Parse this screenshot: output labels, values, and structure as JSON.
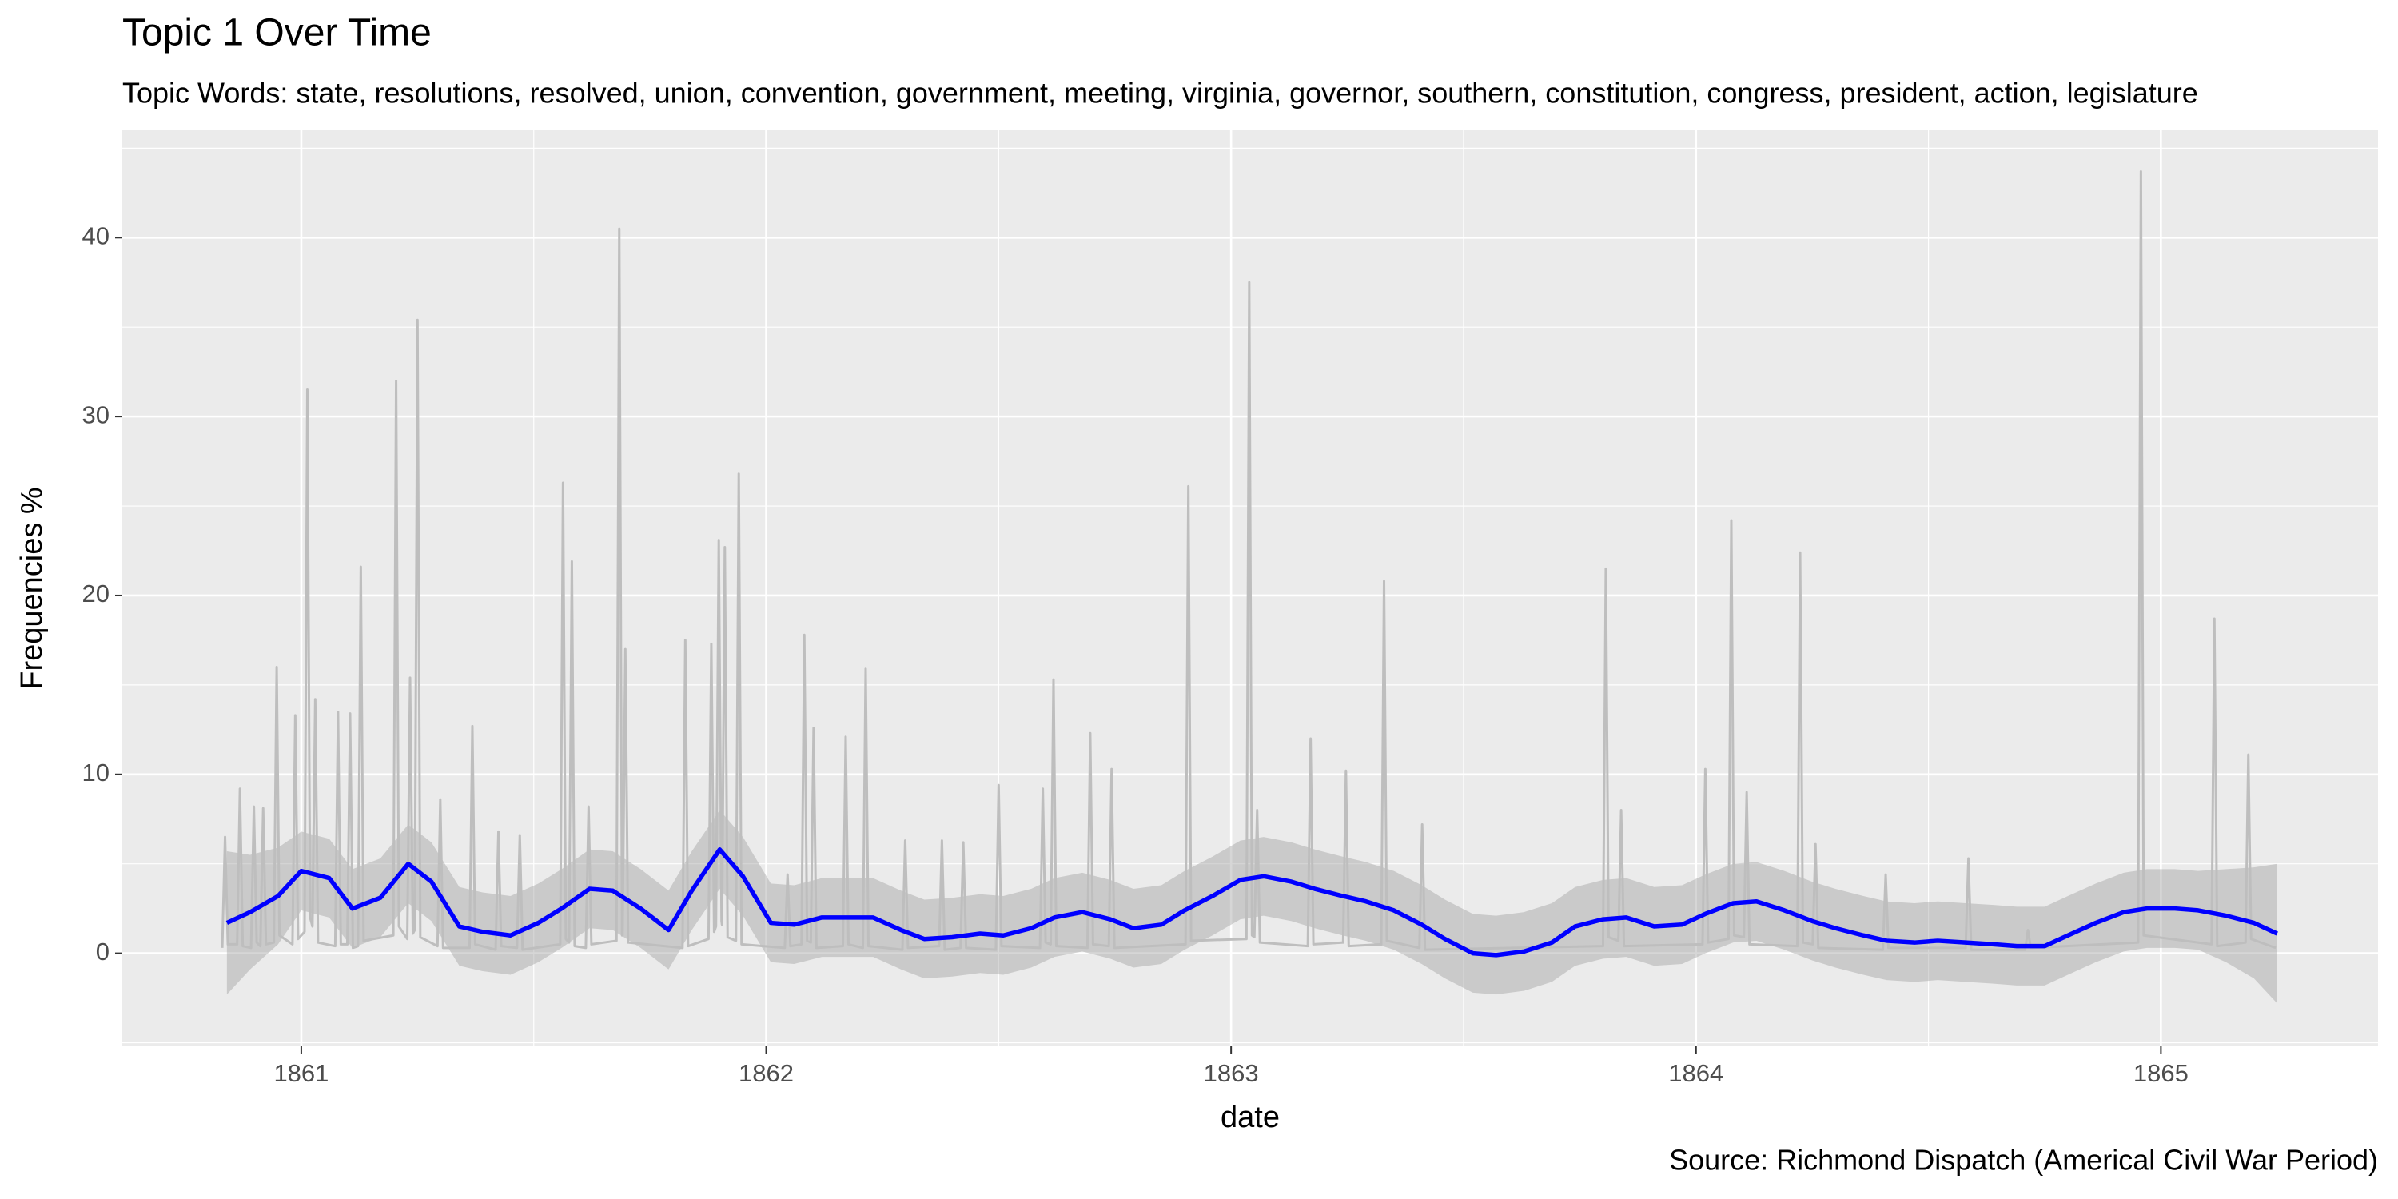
{
  "chart_data": {
    "type": "line",
    "title": "Topic 1 Over Time",
    "subtitle": "Topic Words: state, resolutions, resolved, union, convention, government, meeting, virginia, governor, southern, constitution, congress, president, action, legislature",
    "caption": "Source: Richmond Dispatch (Americal Civil War Period)",
    "x_label": "date",
    "y_label": "Frequencies %",
    "xlim": [
      1860.615,
      1865.467
    ],
    "ylim": [
      -5.2,
      46
    ],
    "xticks": [
      1861,
      1862,
      1863,
      1864,
      1865
    ],
    "yticks": [
      0,
      10,
      20,
      30,
      40
    ],
    "minor_xticks": [
      1861.5,
      1862.5,
      1863.5,
      1864.5
    ],
    "minor_yticks": [
      -5,
      5,
      15,
      25,
      35,
      45
    ],
    "grid": true,
    "background": "#ebebeb",
    "series": [
      {
        "color": "#bebebe",
        "x": [
          1860.83,
          1860.836,
          1860.842,
          1860.862,
          1860.868,
          1860.874,
          1860.892,
          1860.898,
          1860.904,
          1860.912,
          1860.918,
          1860.924,
          1860.941,
          1860.947,
          1860.953,
          1860.981,
          1860.987,
          1860.993,
          1861.007,
          1861.013,
          1861.019,
          1861.024,
          1861.03,
          1861.036,
          1861.073,
          1861.079,
          1861.085,
          1861.099,
          1861.105,
          1861.111,
          1861.122,
          1861.128,
          1861.134,
          1861.198,
          1861.204,
          1861.21,
          1861.228,
          1861.234,
          1861.24,
          1861.244,
          1861.25,
          1861.256,
          1861.293,
          1861.299,
          1861.305,
          1861.362,
          1861.368,
          1861.374,
          1861.418,
          1861.424,
          1861.43,
          1861.464,
          1861.47,
          1861.476,
          1861.557,
          1861.563,
          1861.569,
          1861.576,
          1861.582,
          1861.588,
          1861.612,
          1861.618,
          1861.624,
          1861.678,
          1861.684,
          1861.69,
          1861.691,
          1861.697,
          1861.703,
          1861.82,
          1861.826,
          1861.832,
          1861.876,
          1861.882,
          1861.888,
          1861.892,
          1861.898,
          1861.904,
          1861.905,
          1861.911,
          1861.917,
          1861.935,
          1861.941,
          1861.947,
          1862.04,
          1862.046,
          1862.052,
          1862.076,
          1862.082,
          1862.088,
          1862.096,
          1862.102,
          1862.108,
          1862.165,
          1862.171,
          1862.177,
          1862.208,
          1862.214,
          1862.22,
          1862.293,
          1862.299,
          1862.305,
          1862.372,
          1862.378,
          1862.384,
          1862.418,
          1862.424,
          1862.43,
          1862.494,
          1862.5,
          1862.506,
          1862.589,
          1862.595,
          1862.601,
          1862.612,
          1862.618,
          1862.624,
          1862.691,
          1862.697,
          1862.703,
          1862.737,
          1862.743,
          1862.749,
          1862.902,
          1862.908,
          1862.914,
          1863.033,
          1863.039,
          1863.045,
          1863.05,
          1863.056,
          1863.062,
          1863.165,
          1863.171,
          1863.177,
          1863.241,
          1863.247,
          1863.253,
          1863.323,
          1863.329,
          1863.335,
          1863.405,
          1863.411,
          1863.417,
          1863.8,
          1863.806,
          1863.812,
          1863.833,
          1863.839,
          1863.845,
          1864.014,
          1864.02,
          1864.026,
          1864.07,
          1864.076,
          1864.082,
          1864.103,
          1864.109,
          1864.115,
          1864.218,
          1864.224,
          1864.23,
          1864.251,
          1864.257,
          1864.263,
          1864.402,
          1864.408,
          1864.414,
          1864.58,
          1864.586,
          1864.592,
          1864.708,
          1864.714,
          1864.72,
          1864.951,
          1864.957,
          1864.963,
          1865.109,
          1865.115,
          1865.121,
          1865.182,
          1865.188,
          1865.194,
          1865.247
        ],
        "values": [
          0.3,
          6.5,
          0.5,
          0.5,
          9.2,
          0.4,
          0.3,
          8.2,
          0.6,
          0.4,
          8.1,
          0.5,
          0.6,
          16,
          1.0,
          0.5,
          13.3,
          0.8,
          1.2,
          31.5,
          2.0,
          1.5,
          14.2,
          0.6,
          0.4,
          13.5,
          0.5,
          0.5,
          13.4,
          0.3,
          0.4,
          21.6,
          0.7,
          1.0,
          32,
          1.5,
          0.8,
          15.4,
          1.1,
          1.3,
          35.4,
          0.9,
          0.4,
          8.6,
          0.3,
          0.3,
          12.7,
          0.5,
          0.2,
          6.8,
          0.4,
          0.3,
          6.6,
          0.2,
          0.5,
          26.3,
          0.8,
          0.6,
          21.9,
          0.4,
          0.3,
          8.2,
          0.5,
          0.7,
          40.5,
          1.0,
          1.0,
          17,
          0.6,
          0.3,
          17.5,
          0.4,
          0.8,
          17.3,
          1.2,
          1.5,
          23.1,
          1.8,
          1.6,
          22.7,
          0.9,
          0.7,
          26.8,
          0.5,
          0.3,
          4.4,
          0.4,
          0.5,
          17.8,
          0.7,
          0.6,
          12.6,
          0.3,
          0.4,
          12.1,
          0.5,
          0.3,
          15.9,
          0.4,
          0.2,
          6.3,
          0.3,
          0.4,
          6.3,
          0.2,
          0.3,
          6.2,
          0.3,
          0.2,
          9.4,
          0.4,
          0.3,
          9.2,
          0.6,
          0.5,
          15.3,
          0.4,
          0.3,
          12.3,
          0.5,
          0.4,
          10.3,
          0.3,
          0.5,
          26.1,
          0.7,
          0.8,
          37.5,
          1.0,
          0.9,
          8,
          0.6,
          0.4,
          12,
          0.5,
          0.6,
          10.2,
          0.4,
          0.5,
          20.8,
          0.7,
          0.3,
          7.2,
          0.2,
          0.4,
          21.5,
          0.9,
          0.7,
          8,
          0.4,
          0.5,
          10.3,
          0.6,
          0.8,
          24.2,
          1.0,
          0.9,
          9,
          0.5,
          0.4,
          22.4,
          0.6,
          0.5,
          6.1,
          0.3,
          0.2,
          4.4,
          0.3,
          0.3,
          5.3,
          0.2,
          0.2,
          1.3,
          0.3,
          0.6,
          43.7,
          1.0,
          0.5,
          18.7,
          0.4,
          0.6,
          11.1,
          0.8,
          0.3
        ]
      },
      {
        "color": "#0000ff",
        "band_color": "#999999",
        "band_opacity": 0.4,
        "x": [
          1860.84,
          1860.89,
          1860.95,
          1861.0,
          1861.06,
          1861.11,
          1861.17,
          1861.23,
          1861.28,
          1861.34,
          1861.39,
          1861.45,
          1861.51,
          1861.56,
          1861.62,
          1861.67,
          1861.73,
          1861.79,
          1861.84,
          1861.9,
          1861.95,
          1862.01,
          1862.06,
          1862.12,
          1862.18,
          1862.23,
          1862.29,
          1862.34,
          1862.4,
          1862.46,
          1862.51,
          1862.57,
          1862.62,
          1862.68,
          1862.74,
          1862.79,
          1862.85,
          1862.9,
          1862.96,
          1863.02,
          1863.07,
          1863.13,
          1863.18,
          1863.24,
          1863.29,
          1863.35,
          1863.41,
          1863.46,
          1863.52,
          1863.57,
          1863.63,
          1863.69,
          1863.74,
          1863.8,
          1863.85,
          1863.91,
          1863.97,
          1864.02,
          1864.08,
          1864.13,
          1864.19,
          1864.25,
          1864.3,
          1864.36,
          1864.41,
          1864.47,
          1864.52,
          1864.58,
          1864.64,
          1864.69,
          1864.75,
          1864.8,
          1864.86,
          1864.92,
          1864.97,
          1865.03,
          1865.08,
          1865.14,
          1865.2,
          1865.25
        ],
        "values": [
          1.7,
          2.3,
          3.2,
          4.6,
          4.2,
          2.5,
          3.1,
          5.0,
          4.0,
          1.5,
          1.2,
          1.0,
          1.7,
          2.5,
          3.6,
          3.5,
          2.5,
          1.3,
          3.5,
          5.8,
          4.3,
          1.7,
          1.6,
          2.0,
          2.0,
          2.0,
          1.3,
          0.8,
          0.9,
          1.1,
          1.0,
          1.4,
          2.0,
          2.3,
          1.9,
          1.4,
          1.6,
          2.4,
          3.2,
          4.1,
          4.3,
          4.0,
          3.6,
          3.2,
          2.9,
          2.4,
          1.6,
          0.8,
          0.0,
          -0.1,
          0.1,
          0.6,
          1.5,
          1.9,
          2.0,
          1.5,
          1.6,
          2.2,
          2.8,
          2.9,
          2.4,
          1.8,
          1.4,
          1.0,
          0.7,
          0.6,
          0.7,
          0.6,
          0.5,
          0.4,
          0.4,
          1.0,
          1.7,
          2.3,
          2.5,
          2.5,
          2.4,
          2.1,
          1.7,
          1.1
        ],
        "upper": [
          5.7,
          5.5,
          5.9,
          6.8,
          6.4,
          4.7,
          5.3,
          7.2,
          6.2,
          3.7,
          3.4,
          3.2,
          3.9,
          4.7,
          5.8,
          5.7,
          4.7,
          3.5,
          5.7,
          8.0,
          6.5,
          3.9,
          3.8,
          4.2,
          4.2,
          4.2,
          3.5,
          3.0,
          3.1,
          3.3,
          3.2,
          3.6,
          4.2,
          4.5,
          4.1,
          3.6,
          3.8,
          4.6,
          5.4,
          6.3,
          6.5,
          6.2,
          5.8,
          5.4,
          5.1,
          4.6,
          3.8,
          3.0,
          2.2,
          2.1,
          2.3,
          2.8,
          3.7,
          4.1,
          4.2,
          3.7,
          3.8,
          4.4,
          5.0,
          5.1,
          4.6,
          4.0,
          3.6,
          3.2,
          2.9,
          2.8,
          2.9,
          2.8,
          2.7,
          2.6,
          2.6,
          3.2,
          3.9,
          4.5,
          4.7,
          4.7,
          4.6,
          4.7,
          4.8,
          5.0
        ],
        "lower": [
          -2.3,
          -0.9,
          0.5,
          2.4,
          2.0,
          0.3,
          0.9,
          2.8,
          1.8,
          -0.7,
          -1.0,
          -1.2,
          -0.5,
          0.3,
          1.4,
          1.3,
          0.3,
          -0.9,
          1.3,
          3.6,
          2.1,
          -0.5,
          -0.6,
          -0.2,
          -0.2,
          -0.2,
          -0.9,
          -1.4,
          -1.3,
          -1.1,
          -1.2,
          -0.8,
          -0.2,
          0.1,
          -0.3,
          -0.8,
          -0.6,
          0.2,
          1.0,
          1.9,
          2.1,
          1.8,
          1.4,
          1.0,
          0.7,
          0.2,
          -0.6,
          -1.4,
          -2.2,
          -2.3,
          -2.1,
          -1.6,
          -0.7,
          -0.3,
          -0.2,
          -0.7,
          -0.6,
          0.0,
          0.6,
          0.7,
          0.2,
          -0.4,
          -0.8,
          -1.2,
          -1.5,
          -1.6,
          -1.5,
          -1.6,
          -1.7,
          -1.8,
          -1.8,
          -1.2,
          -0.5,
          0.1,
          0.3,
          0.3,
          0.2,
          -0.5,
          -1.4,
          -2.8
        ]
      }
    ]
  }
}
